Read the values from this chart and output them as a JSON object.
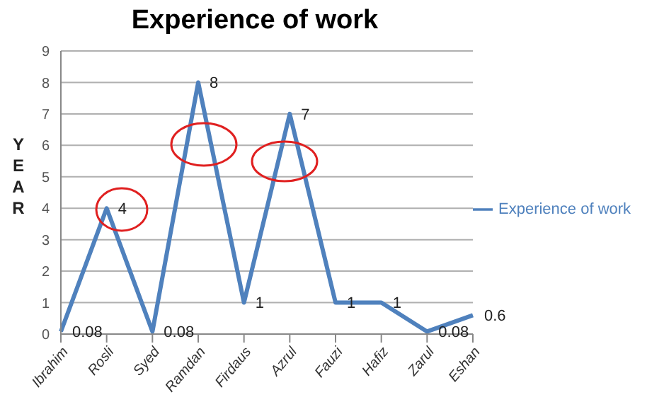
{
  "chart_data": {
    "type": "line",
    "title": "Experience of work",
    "ylabel": "YEAR",
    "categories": [
      "Ibrahim",
      "Rosli",
      "Syed",
      "Ramdan",
      "Firdaus",
      "Azrul",
      "Fauzi",
      "Hafiz",
      "Zarul",
      "Eshan"
    ],
    "series": [
      {
        "name": "Experience of work",
        "color": "#4f81bd",
        "values": [
          0.08,
          4,
          0.08,
          8,
          1,
          7,
          1,
          1,
          0.08,
          0.6
        ]
      }
    ],
    "ylim": [
      0,
      9
    ],
    "yticks": [
      0,
      1,
      2,
      3,
      4,
      5,
      6,
      7,
      8,
      9
    ],
    "grid": "y",
    "legend": "right",
    "marker": "none",
    "data_labels": true
  }
}
